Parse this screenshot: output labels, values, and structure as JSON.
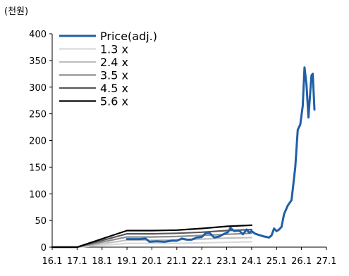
{
  "chart_data": {
    "type": "line",
    "unit_label": "(천원)",
    "x_ticks": [
      "16.1",
      "17.1",
      "18.1",
      "19.1",
      "20.1",
      "21.1",
      "22.1",
      "23.1",
      "24.1",
      "25.1",
      "26.1",
      "27.1"
    ],
    "xlim": [
      2016.0,
      2027.0
    ],
    "ylim": [
      0,
      400
    ],
    "y_ticks": [
      0,
      50,
      100,
      150,
      200,
      250,
      300,
      350,
      400
    ],
    "grid": false,
    "legend_position": "top-left",
    "series": [
      {
        "name": "Price(adj.)",
        "color": "#1f5fa6",
        "points": [
          [
            2019.0,
            15
          ],
          [
            2019.5,
            15
          ],
          [
            2019.75,
            16
          ],
          [
            2019.9,
            10
          ],
          [
            2020.2,
            11
          ],
          [
            2020.5,
            10
          ],
          [
            2020.8,
            12
          ],
          [
            2021.0,
            12
          ],
          [
            2021.2,
            16
          ],
          [
            2021.4,
            14
          ],
          [
            2021.6,
            14
          ],
          [
            2021.8,
            18
          ],
          [
            2022.0,
            19
          ],
          [
            2022.15,
            26
          ],
          [
            2022.3,
            27
          ],
          [
            2022.5,
            18
          ],
          [
            2022.7,
            20
          ],
          [
            2022.9,
            25
          ],
          [
            2023.05,
            28
          ],
          [
            2023.15,
            36
          ],
          [
            2023.3,
            30
          ],
          [
            2023.5,
            31
          ],
          [
            2023.65,
            24
          ],
          [
            2023.8,
            33
          ],
          [
            2023.9,
            27
          ],
          [
            2024.0,
            30
          ],
          [
            2024.15,
            25
          ],
          [
            2024.35,
            22
          ],
          [
            2024.5,
            20
          ],
          [
            2024.7,
            18
          ],
          [
            2024.8,
            22
          ],
          [
            2024.9,
            35
          ],
          [
            2025.0,
            30
          ],
          [
            2025.1,
            33
          ],
          [
            2025.2,
            38
          ],
          [
            2025.3,
            62
          ],
          [
            2025.45,
            78
          ],
          [
            2025.6,
            88
          ],
          [
            2025.75,
            150
          ],
          [
            2025.85,
            220
          ],
          [
            2025.95,
            230
          ],
          [
            2026.05,
            265
          ],
          [
            2026.12,
            337
          ],
          [
            2026.2,
            305
          ],
          [
            2026.28,
            243
          ],
          [
            2026.35,
            290
          ],
          [
            2026.4,
            322
          ],
          [
            2026.45,
            325
          ],
          [
            2026.52,
            258
          ]
        ]
      },
      {
        "name": "1.3 x",
        "color": "#d9d9d9",
        "points": [
          [
            2016.0,
            0
          ],
          [
            2017.0,
            0
          ],
          [
            2019.0,
            7
          ],
          [
            2020.0,
            7
          ],
          [
            2021.0,
            7
          ],
          [
            2022.0,
            8
          ],
          [
            2023.0,
            9
          ],
          [
            2024.0,
            10
          ]
        ]
      },
      {
        "name": "2.4 x",
        "color": "#bfbfbf",
        "points": [
          [
            2016.0,
            0
          ],
          [
            2017.0,
            0
          ],
          [
            2019.0,
            13
          ],
          [
            2020.0,
            13
          ],
          [
            2021.0,
            14
          ],
          [
            2022.0,
            15
          ],
          [
            2023.0,
            17
          ],
          [
            2024.0,
            18
          ]
        ]
      },
      {
        "name": "3.5 x",
        "color": "#8c8c8c",
        "points": [
          [
            2016.0,
            0
          ],
          [
            2017.0,
            0
          ],
          [
            2019.0,
            19
          ],
          [
            2020.0,
            19
          ],
          [
            2021.0,
            20
          ],
          [
            2022.0,
            22
          ],
          [
            2023.0,
            24
          ],
          [
            2024.0,
            26
          ]
        ]
      },
      {
        "name": "4.5 x",
        "color": "#595959",
        "points": [
          [
            2016.0,
            0
          ],
          [
            2017.0,
            0
          ],
          [
            2019.0,
            25
          ],
          [
            2020.0,
            25
          ],
          [
            2021.0,
            26
          ],
          [
            2022.0,
            28
          ],
          [
            2023.0,
            31
          ],
          [
            2024.0,
            33
          ]
        ]
      },
      {
        "name": "5.6 x",
        "color": "#000000",
        "points": [
          [
            2016.0,
            0
          ],
          [
            2017.0,
            0
          ],
          [
            2019.0,
            31
          ],
          [
            2020.0,
            31
          ],
          [
            2021.0,
            32
          ],
          [
            2022.0,
            35
          ],
          [
            2023.0,
            39
          ],
          [
            2024.0,
            41
          ]
        ]
      }
    ]
  }
}
